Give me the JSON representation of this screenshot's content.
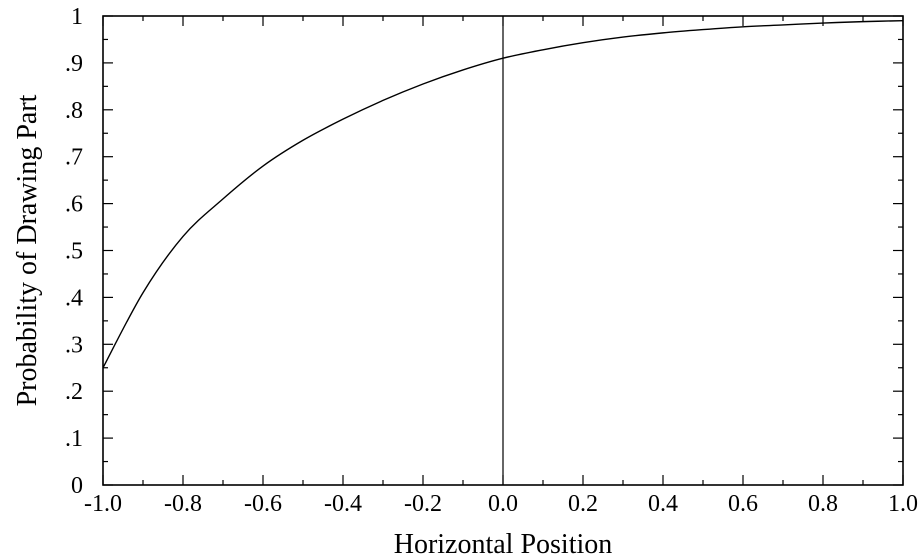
{
  "chart_data": {
    "type": "line",
    "title": "",
    "xlabel": "Horizontal Position",
    "ylabel": "Probability of Drawing Part",
    "xlim": [
      -1.0,
      1.0
    ],
    "ylim": [
      0,
      1
    ],
    "x_ticks": [
      -1.0,
      -0.8,
      -0.6,
      -0.4,
      -0.2,
      0.0,
      0.2,
      0.4,
      0.6,
      0.8,
      1.0
    ],
    "x_tick_labels": [
      "-1.0",
      "-0.8",
      "-0.6",
      "-0.4",
      "-0.2",
      "0.0",
      "0.2",
      "0.4",
      "0.6",
      "0.8",
      "1.0"
    ],
    "y_ticks": [
      0,
      0.1,
      0.2,
      0.3,
      0.4,
      0.5,
      0.6,
      0.7,
      0.8,
      0.9,
      1.0
    ],
    "y_tick_labels": [
      "0",
      ".1",
      ".2",
      ".3",
      ".4",
      ".5",
      ".6",
      ".7",
      ".8",
      ".9",
      "1"
    ],
    "grid": false,
    "reference_line_x": 0.0,
    "series": [
      {
        "x": [
          -1.0,
          -0.9,
          -0.8,
          -0.7,
          -0.6,
          -0.5,
          -0.4,
          -0.3,
          -0.2,
          -0.1,
          0.0,
          0.1,
          0.2,
          0.3,
          0.4,
          0.5,
          0.6,
          0.7,
          0.8,
          0.9,
          1.0
        ],
        "values": [
          0.25,
          0.41,
          0.53,
          0.61,
          0.68,
          0.735,
          0.78,
          0.82,
          0.855,
          0.885,
          0.91,
          0.928,
          0.943,
          0.955,
          0.964,
          0.971,
          0.977,
          0.981,
          0.985,
          0.988,
          0.99
        ]
      }
    ],
    "colors": {
      "line": "#000000",
      "axis": "#000000",
      "background": "#ffffff"
    }
  }
}
